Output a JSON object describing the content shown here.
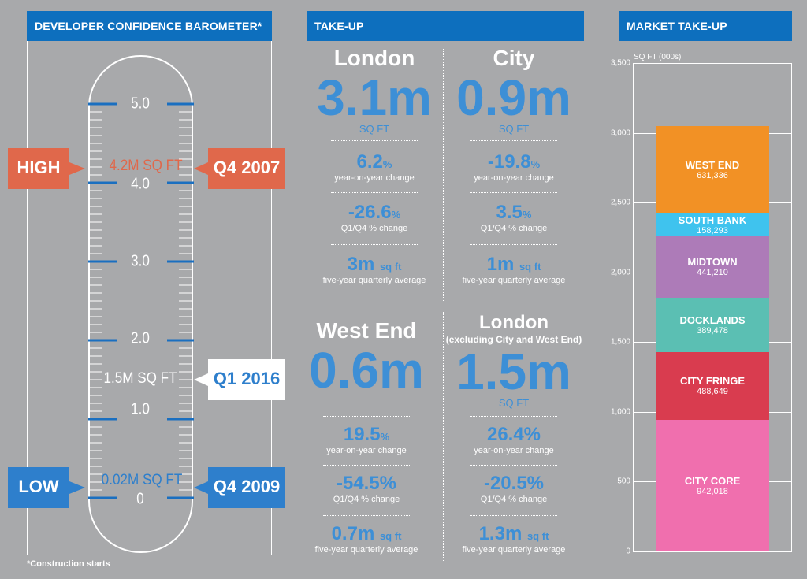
{
  "barometer": {
    "header": "DEVELOPER CONFIDENCE BAROMETER*",
    "ticks": [
      "5.0",
      "4.0",
      "3.0",
      "2.0",
      "1.0",
      "0"
    ],
    "high": {
      "label": "HIGH",
      "value": "4.2M SQ FT",
      "period": "Q4 2007",
      "color": "#e0684b"
    },
    "current": {
      "value": "1.5M SQ FT",
      "period": "Q1 2016"
    },
    "low": {
      "label": "LOW",
      "value": "0.02M SQ FT",
      "period": "Q4 2009",
      "color": "#2e7fcc"
    },
    "footnote": "*Construction starts"
  },
  "takeup": {
    "header": "TAKE-UP",
    "panels": [
      {
        "title": "London",
        "subtitle": "",
        "big": "3.1m",
        "unit": "SQ FT",
        "stats": [
          {
            "value": "6.2",
            "suffix": "%",
            "label": "year-on-year change"
          },
          {
            "value": "-26.6",
            "suffix": "%",
            "label": "Q1/Q4 % change"
          },
          {
            "value": "3m",
            "suffix": "sq ft",
            "label": "five-year quarterly average"
          }
        ]
      },
      {
        "title": "City",
        "subtitle": "",
        "big": "0.9m",
        "unit": "SQ FT",
        "stats": [
          {
            "value": "-19.8",
            "suffix": "%",
            "label": "year-on-year change"
          },
          {
            "value": "3.5",
            "suffix": "%",
            "label": "Q1/Q4 % change"
          },
          {
            "value": "1m",
            "suffix": "sq ft",
            "label": "five-year quarterly average"
          }
        ]
      },
      {
        "title": "West End",
        "subtitle": "",
        "big": "0.6m",
        "unit": "",
        "stats": [
          {
            "value": "19.5",
            "suffix": "%",
            "label": "year-on-year change"
          },
          {
            "value": "-54.5%",
            "suffix": "",
            "label": "Q1/Q4 % change"
          },
          {
            "value": "0.7m",
            "suffix": "sq ft",
            "label": "five-year quarterly average"
          }
        ]
      },
      {
        "title": "London",
        "subtitle": "(excluding City and West End)",
        "big": "1.5m",
        "unit": "SQ FT",
        "stats": [
          {
            "value": "26.4%",
            "suffix": "",
            "label": "year-on-year change"
          },
          {
            "value": "-20.5%",
            "suffix": "",
            "label": "Q1/Q4 % change"
          },
          {
            "value": "1.3m",
            "suffix": "sq ft",
            "label": "five-year quarterly average"
          }
        ]
      }
    ]
  },
  "market": {
    "header": "MARKET TAKE-UP",
    "yunit": "SQ FT (000s)",
    "yticks": [
      "3,500",
      "3,000",
      "2,500",
      "2,000",
      "1,500",
      "1,000",
      "500",
      "0"
    ],
    "segments": [
      {
        "name": "CITY CORE",
        "value": "942,018",
        "color": "#f06fae"
      },
      {
        "name": "CITY FRINGE",
        "value": "488,649",
        "color": "#d93c4f"
      },
      {
        "name": "DOCKLANDS",
        "value": "389,478",
        "color": "#5bbfb3"
      },
      {
        "name": "MIDTOWN",
        "value": "441,210",
        "color": "#ad7bb8"
      },
      {
        "name": "SOUTH BANK",
        "value": "158,293",
        "color": "#3fc3ee"
      },
      {
        "name": "WEST END",
        "value": "631,336",
        "color": "#f29125"
      }
    ]
  }
}
